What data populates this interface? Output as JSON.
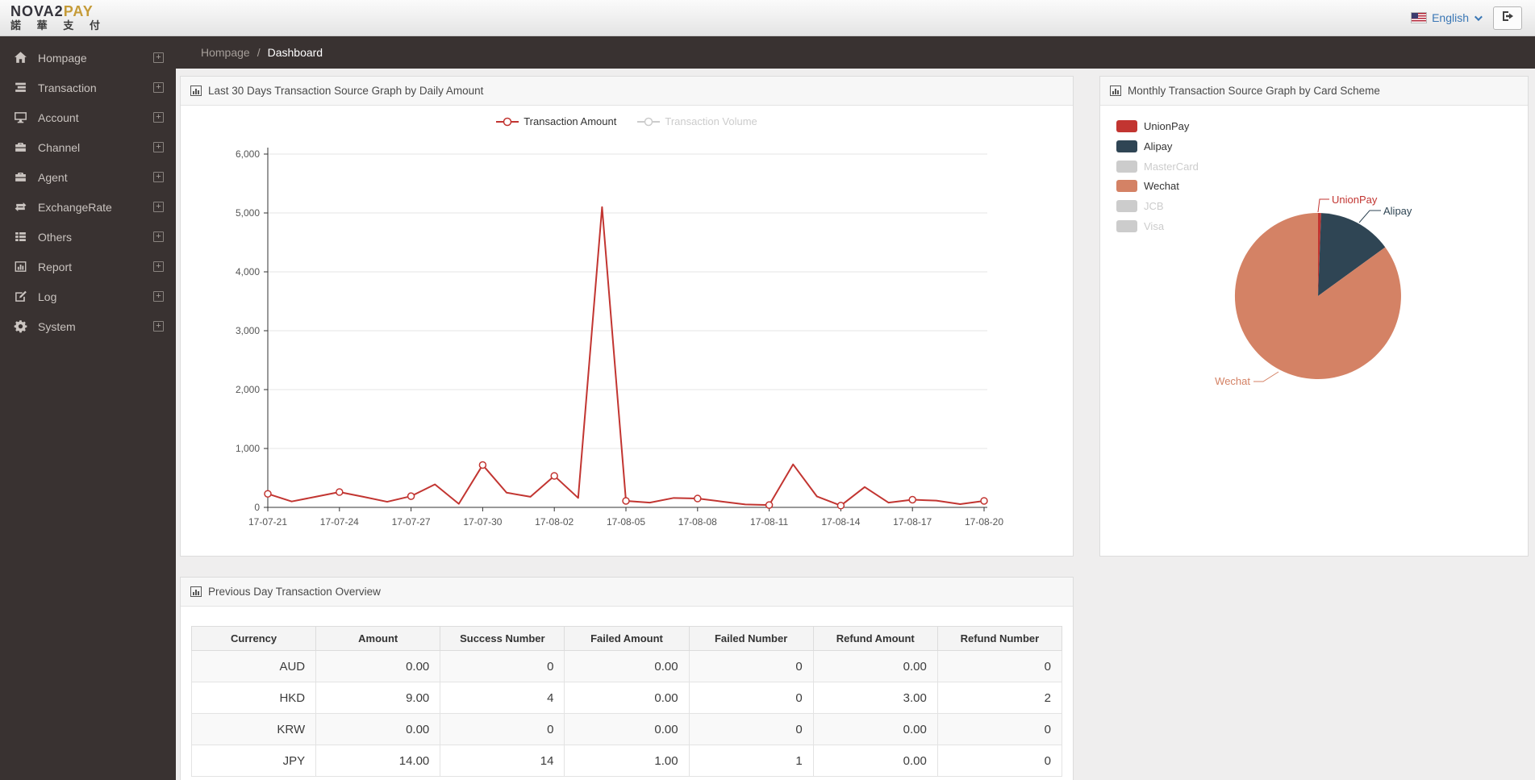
{
  "header": {
    "logo_primary": "NOVA2",
    "logo_accent": "PAY",
    "logo_subtitle": "諾 華 支 付",
    "language_label": "English",
    "language_flag": "us-flag-icon",
    "logout_icon": "sign-out-icon"
  },
  "sidebar": {
    "items": [
      {
        "label": "Hompage",
        "icon": "home-icon"
      },
      {
        "label": "Transaction",
        "icon": "transaction-icon"
      },
      {
        "label": "Account",
        "icon": "account-icon"
      },
      {
        "label": "Channel",
        "icon": "channel-icon"
      },
      {
        "label": "Agent",
        "icon": "agent-icon"
      },
      {
        "label": "ExchangeRate",
        "icon": "exchange-icon"
      },
      {
        "label": "Others",
        "icon": "others-icon"
      },
      {
        "label": "Report",
        "icon": "report-icon"
      },
      {
        "label": "Log",
        "icon": "log-icon"
      },
      {
        "label": "System",
        "icon": "system-icon"
      }
    ],
    "expand_glyph": "+"
  },
  "breadcrumb": {
    "parent": "Hompage",
    "separator": "/",
    "current": "Dashboard"
  },
  "panels": {
    "line_panel": {
      "title": "Last 30 Days Transaction Source Graph by Daily Amount"
    },
    "pie_panel": {
      "title": "Monthly Transaction Source Graph by Card Scheme"
    },
    "table_panel": {
      "title": "Previous Day Transaction Overview"
    }
  },
  "chart_data": [
    {
      "type": "line",
      "title": "Last 30 Days Transaction Source Graph by Daily Amount",
      "legend": [
        {
          "name": "Transaction Amount",
          "enabled": true,
          "color": "#c23531"
        },
        {
          "name": "Transaction Volume",
          "enabled": false,
          "color": "#cccccc"
        }
      ],
      "legend_position": "top",
      "grid": true,
      "ylim": [
        0,
        6000
      ],
      "y_ticks": [
        0,
        1000,
        2000,
        3000,
        4000,
        5000,
        6000
      ],
      "x": [
        "17-07-21",
        "17-07-22",
        "17-07-23",
        "17-07-24",
        "17-07-25",
        "17-07-26",
        "17-07-27",
        "17-07-28",
        "17-07-29",
        "17-07-30",
        "17-07-31",
        "17-08-01",
        "17-08-02",
        "17-08-03",
        "17-08-04",
        "17-08-05",
        "17-08-06",
        "17-08-07",
        "17-08-08",
        "17-08-09",
        "17-08-10",
        "17-08-11",
        "17-08-12",
        "17-08-13",
        "17-08-14",
        "17-08-15",
        "17-08-16",
        "17-08-17",
        "17-08-18",
        "17-08-19",
        "17-08-20"
      ],
      "x_label_every": 3,
      "series": [
        {
          "name": "Transaction Amount",
          "color": "#c23531",
          "values": [
            230,
            100,
            180,
            260,
            180,
            95,
            190,
            390,
            60,
            720,
            250,
            180,
            535,
            160,
            5100,
            110,
            80,
            160,
            150,
            100,
            50,
            40,
            730,
            185,
            30,
            345,
            80,
            130,
            115,
            55,
            110
          ]
        }
      ]
    },
    {
      "type": "pie",
      "title": "Monthly Transaction Source Graph by Card Scheme",
      "legend": [
        {
          "name": "UnionPay",
          "enabled": true,
          "color": "#c23531"
        },
        {
          "name": "Alipay",
          "enabled": true,
          "color": "#2f4554"
        },
        {
          "name": "MasterCard",
          "enabled": false,
          "color": "#cccccc"
        },
        {
          "name": "Wechat",
          "enabled": true,
          "color": "#d48265"
        },
        {
          "name": "JCB",
          "enabled": false,
          "color": "#cccccc"
        },
        {
          "name": "Visa",
          "enabled": false,
          "color": "#cccccc"
        }
      ],
      "legend_position": "top-left",
      "slices": [
        {
          "name": "UnionPay",
          "percent": 0.6,
          "color": "#c23531"
        },
        {
          "name": "Alipay",
          "percent": 14.4,
          "color": "#2f4554"
        },
        {
          "name": "Wechat",
          "percent": 85.0,
          "color": "#d48265"
        }
      ]
    }
  ],
  "table": {
    "columns": [
      "Currency",
      "Amount",
      "Success Number",
      "Failed Amount",
      "Failed Number",
      "Refund Amount",
      "Refund Number"
    ],
    "rows": [
      [
        "AUD",
        "0.00",
        "0",
        "0.00",
        "0",
        "0.00",
        "0"
      ],
      [
        "HKD",
        "9.00",
        "4",
        "0.00",
        "0",
        "3.00",
        "2"
      ],
      [
        "KRW",
        "0.00",
        "0",
        "0.00",
        "0",
        "0.00",
        "0"
      ],
      [
        "JPY",
        "14.00",
        "14",
        "1.00",
        "1",
        "0.00",
        "0"
      ]
    ]
  }
}
